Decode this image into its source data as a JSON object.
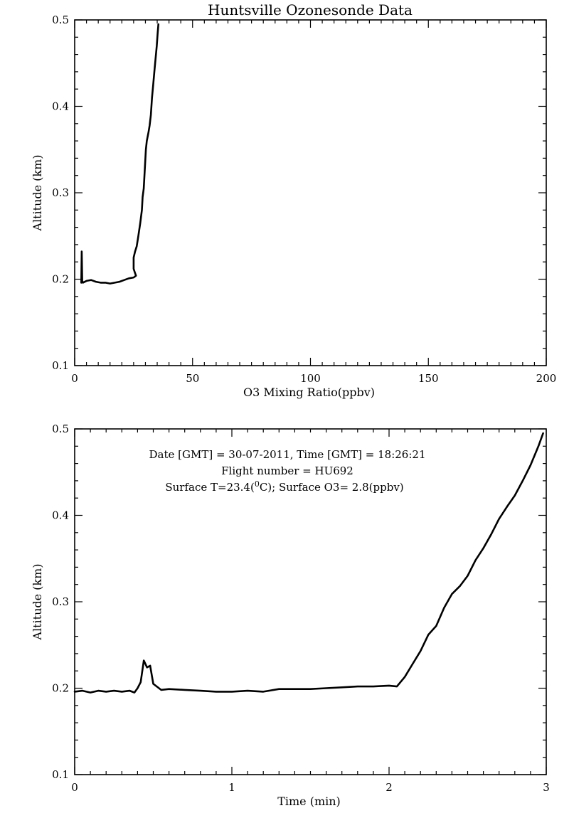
{
  "chart_data": [
    {
      "type": "line",
      "title": "Huntsville Ozonesonde Data",
      "xlabel": "O3 Mixing Ratio(ppbv)",
      "ylabel": "Altitude (km)",
      "xlim": [
        0,
        200
      ],
      "ylim": [
        0.1,
        0.5
      ],
      "xticks": [
        0,
        50,
        100,
        150,
        200
      ],
      "yticks": [
        0.1,
        0.2,
        0.3,
        0.4,
        0.5
      ],
      "xtick_labels": [
        "0",
        "50",
        "100",
        "150",
        "200"
      ],
      "ytick_labels": [
        "0.1",
        "0.2",
        "0.3",
        "0.4",
        "0.5"
      ],
      "grid": false,
      "series": [
        {
          "points": [
            [
              2.8,
              0.196
            ],
            [
              3.0,
              0.232
            ],
            [
              3.2,
              0.198
            ],
            [
              3.5,
              0.196
            ],
            [
              5,
              0.198
            ],
            [
              7,
              0.199
            ],
            [
              9,
              0.197
            ],
            [
              11,
              0.196
            ],
            [
              13,
              0.196
            ],
            [
              15,
              0.195
            ],
            [
              17,
              0.196
            ],
            [
              19,
              0.197
            ],
            [
              21,
              0.199
            ],
            [
              23,
              0.201
            ],
            [
              25,
              0.202
            ],
            [
              26,
              0.204
            ],
            [
              25.5,
              0.208
            ],
            [
              25,
              0.212
            ],
            [
              25,
              0.225
            ],
            [
              25.6,
              0.232
            ],
            [
              26.3,
              0.238
            ],
            [
              27,
              0.25
            ],
            [
              27.8,
              0.265
            ],
            [
              28.5,
              0.28
            ],
            [
              28.8,
              0.295
            ],
            [
              29.3,
              0.305
            ],
            [
              29.6,
              0.32
            ],
            [
              29.9,
              0.335
            ],
            [
              30.2,
              0.35
            ],
            [
              30.6,
              0.36
            ],
            [
              31.3,
              0.37
            ],
            [
              31.8,
              0.378
            ],
            [
              32.3,
              0.39
            ],
            [
              32.8,
              0.41
            ],
            [
              33.3,
              0.425
            ],
            [
              33.8,
              0.44
            ],
            [
              34.3,
              0.455
            ],
            [
              34.8,
              0.47
            ],
            [
              35.2,
              0.485
            ],
            [
              35.5,
              0.495
            ]
          ]
        }
      ]
    },
    {
      "type": "line",
      "title": "",
      "xlabel": "Time (min)",
      "ylabel": "Altitude (km)",
      "xlim": [
        0,
        3
      ],
      "ylim": [
        0.1,
        0.5
      ],
      "xticks": [
        0,
        1,
        2,
        3
      ],
      "yticks": [
        0.1,
        0.2,
        0.3,
        0.4,
        0.5
      ],
      "xtick_labels": [
        "0",
        "1",
        "2",
        "3"
      ],
      "ytick_labels": [
        "0.1",
        "0.2",
        "0.3",
        "0.4",
        "0.5"
      ],
      "grid": false,
      "annotations": [
        "Date [GMT] = 30-07-2011,  Time [GMT] = 18:26:21",
        "Flight number = HU692"
      ],
      "surface_label": "Surface T=23.4(",
      "surface_unit": "C); Surface O3= 2.8(ppbv)",
      "surface_degree": "0",
      "series": [
        {
          "points": [
            [
              0.0,
              0.196
            ],
            [
              0.05,
              0.197
            ],
            [
              0.1,
              0.195
            ],
            [
              0.15,
              0.197
            ],
            [
              0.2,
              0.196
            ],
            [
              0.25,
              0.197
            ],
            [
              0.3,
              0.196
            ],
            [
              0.35,
              0.197
            ],
            [
              0.38,
              0.195
            ],
            [
              0.4,
              0.2
            ],
            [
              0.42,
              0.207
            ],
            [
              0.44,
              0.232
            ],
            [
              0.46,
              0.224
            ],
            [
              0.48,
              0.226
            ],
            [
              0.5,
              0.205
            ],
            [
              0.55,
              0.198
            ],
            [
              0.6,
              0.199
            ],
            [
              0.7,
              0.198
            ],
            [
              0.8,
              0.197
            ],
            [
              0.9,
              0.196
            ],
            [
              1.0,
              0.196
            ],
            [
              1.1,
              0.197
            ],
            [
              1.2,
              0.196
            ],
            [
              1.3,
              0.199
            ],
            [
              1.4,
              0.199
            ],
            [
              1.5,
              0.199
            ],
            [
              1.6,
              0.2
            ],
            [
              1.7,
              0.201
            ],
            [
              1.8,
              0.202
            ],
            [
              1.9,
              0.202
            ],
            [
              2.0,
              0.203
            ],
            [
              2.05,
              0.202
            ],
            [
              2.1,
              0.213
            ],
            [
              2.15,
              0.228
            ],
            [
              2.2,
              0.243
            ],
            [
              2.25,
              0.262
            ],
            [
              2.3,
              0.272
            ],
            [
              2.35,
              0.293
            ],
            [
              2.4,
              0.309
            ],
            [
              2.45,
              0.318
            ],
            [
              2.5,
              0.33
            ],
            [
              2.55,
              0.348
            ],
            [
              2.6,
              0.362
            ],
            [
              2.65,
              0.378
            ],
            [
              2.7,
              0.396
            ],
            [
              2.75,
              0.41
            ],
            [
              2.8,
              0.423
            ],
            [
              2.85,
              0.44
            ],
            [
              2.9,
              0.458
            ],
            [
              2.95,
              0.48
            ],
            [
              2.98,
              0.495
            ]
          ]
        }
      ]
    }
  ]
}
